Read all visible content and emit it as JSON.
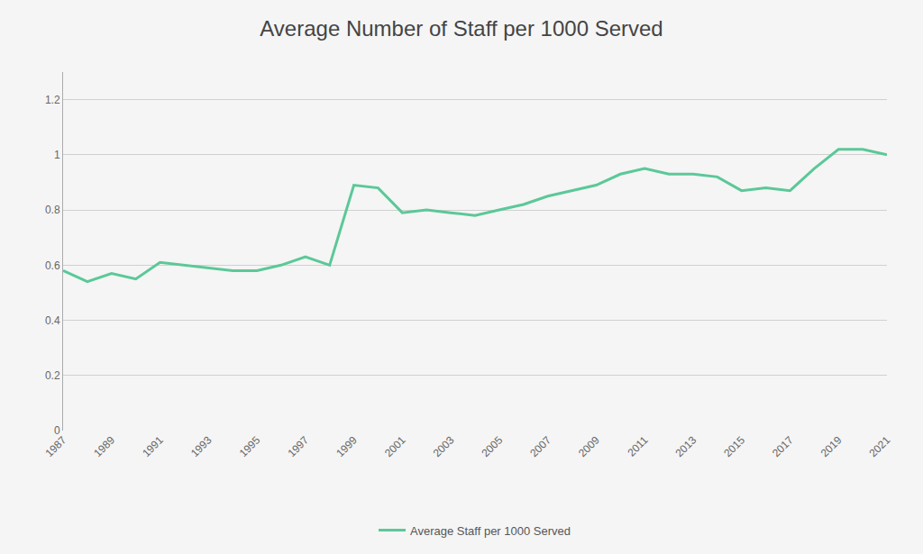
{
  "chart_data": {
    "type": "line",
    "title": "Average Number of Staff per 1000 Served",
    "x": [
      1987,
      1988,
      1989,
      1990,
      1991,
      1992,
      1993,
      1994,
      1995,
      1996,
      1997,
      1998,
      1999,
      2000,
      2001,
      2002,
      2003,
      2004,
      2005,
      2006,
      2007,
      2008,
      2009,
      2010,
      2011,
      2012,
      2013,
      2014,
      2015,
      2016,
      2017,
      2018,
      2019,
      2020,
      2021
    ],
    "series": [
      {
        "name": "Average Staff per 1000 Served",
        "color": "#5BC898",
        "values": [
          0.58,
          0.54,
          0.57,
          0.55,
          0.61,
          0.6,
          0.59,
          0.58,
          0.58,
          0.6,
          0.63,
          0.6,
          0.89,
          0.88,
          0.79,
          0.8,
          0.79,
          0.78,
          0.8,
          0.82,
          0.85,
          0.87,
          0.89,
          0.93,
          0.95,
          0.93,
          0.93,
          0.92,
          0.87,
          0.88,
          0.87,
          0.95,
          1.02,
          1.02,
          1.0
        ]
      }
    ],
    "xlim": [
      1987,
      2021
    ],
    "xticks": [
      1987,
      1989,
      1991,
      1993,
      1995,
      1997,
      1999,
      2001,
      2003,
      2005,
      2007,
      2009,
      2011,
      2013,
      2015,
      2017,
      2019,
      2021
    ],
    "ylim": [
      0,
      1.3
    ],
    "yticks": [
      0,
      0.2,
      0.4,
      0.6,
      0.8,
      1,
      1.2
    ],
    "grid": "y",
    "legend": "bottom"
  }
}
